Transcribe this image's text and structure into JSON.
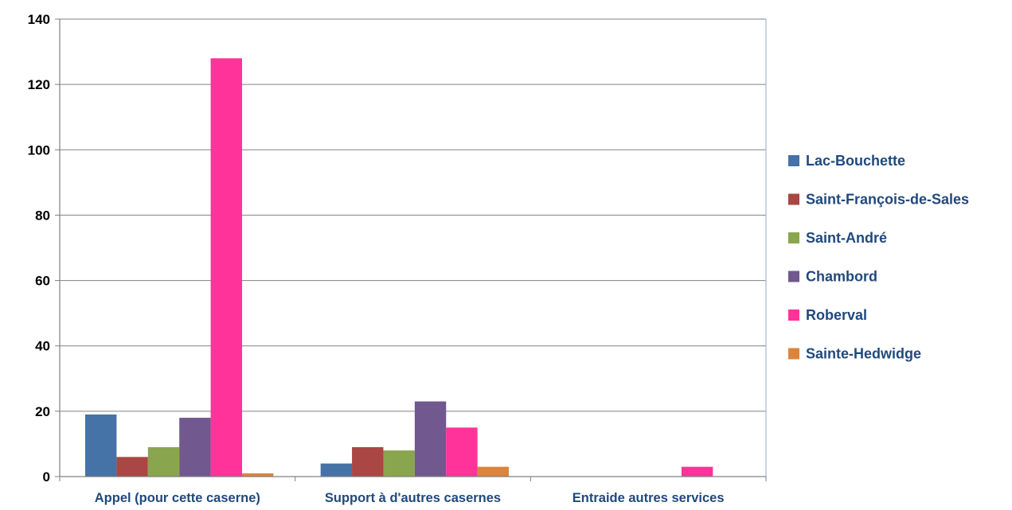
{
  "chart_data": {
    "type": "bar",
    "categories": [
      "Appel (pour cette caserne)",
      "Support à d'autres casernes",
      "Entraide autres services"
    ],
    "series": [
      {
        "name": "Lac-Bouchette",
        "color": "#4572a7",
        "values": [
          19,
          4,
          0
        ]
      },
      {
        "name": "Saint-François-de-Sales",
        "color": "#aa4643",
        "values": [
          6,
          9,
          0
        ]
      },
      {
        "name": "Saint-André",
        "color": "#89a54e",
        "values": [
          9,
          8,
          0
        ]
      },
      {
        "name": "Chambord",
        "color": "#71588f",
        "values": [
          18,
          23,
          0
        ]
      },
      {
        "name": "Roberval",
        "color": "#ff3399",
        "values": [
          128,
          15,
          3
        ]
      },
      {
        "name": "Sainte-Hedwidge",
        "color": "#db843d",
        "values": [
          1,
          3,
          0
        ]
      }
    ],
    "ylim": [
      0,
      140
    ],
    "yticks": [
      0,
      20,
      40,
      60,
      80,
      100,
      120,
      140
    ],
    "grid": true,
    "legend": "right"
  }
}
